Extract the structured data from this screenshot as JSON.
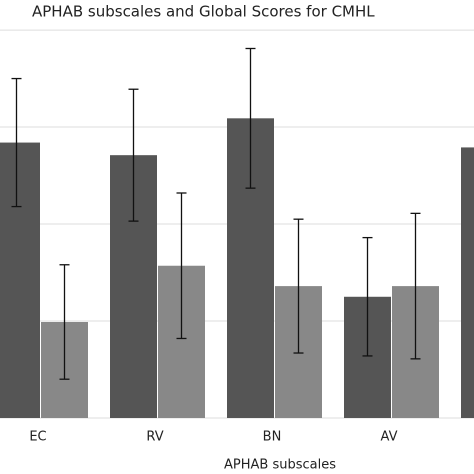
{
  "chart_data": {
    "type": "bar",
    "title": "APHAB subscales and Global Scores for CMHL",
    "x_label": "APHAB subscales",
    "categories": [
      "EC",
      "RV",
      "BN",
      "AV",
      null
    ],
    "series": [
      {
        "color": "#555555",
        "values": [
          2.84,
          2.71,
          3.09,
          1.25,
          2.79
        ],
        "errors": [
          0.66,
          0.68,
          0.72,
          0.61,
          null
        ]
      },
      {
        "color": "#888888",
        "values": [
          0.99,
          1.57,
          1.36,
          1.36,
          null
        ],
        "errors": [
          0.59,
          0.75,
          0.69,
          0.75,
          null
        ]
      }
    ],
    "ylim": [
      0,
      4.31
    ],
    "yticks": [
      0,
      1,
      2,
      3,
      4
    ],
    "grid": true
  }
}
